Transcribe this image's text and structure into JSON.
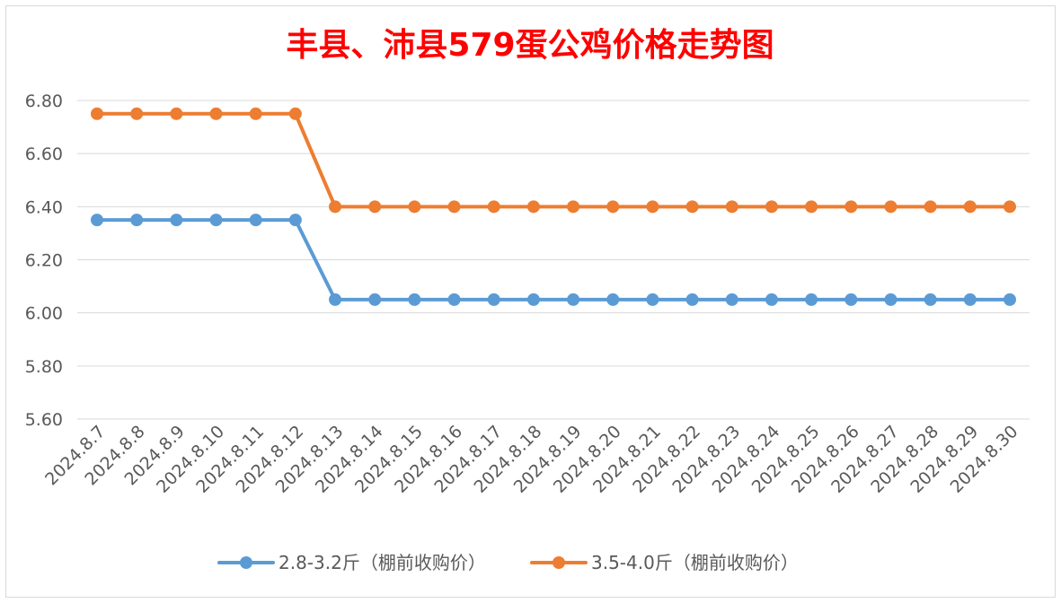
{
  "chart_data": {
    "type": "line",
    "title": "丰县、沛县579蛋公鸡价格走势图",
    "xlabel": "",
    "ylabel": "",
    "ylim": [
      5.6,
      6.8
    ],
    "yticks": [
      "6.80",
      "6.60",
      "6.40",
      "6.20",
      "6.00",
      "5.80",
      "5.60"
    ],
    "grid": true,
    "legend_position": "bottom",
    "categories": [
      "2024.8.7",
      "2024.8.8",
      "2024.8.9",
      "2024.8.10",
      "2024.8.11",
      "2024.8.12",
      "2024.8.13",
      "2024.8.14",
      "2024.8.15",
      "2024.8.16",
      "2024.8.17",
      "2024.8.18",
      "2024.8.19",
      "2024.8.20",
      "2024.8.21",
      "2024.8.22",
      "2024.8.23",
      "2024.8.24",
      "2024.8.25",
      "2024.8.26",
      "2024.8.27",
      "2024.8.28",
      "2024.8.29",
      "2024.8.30"
    ],
    "series": [
      {
        "name": "2.8-3.2斤（棚前收购价）",
        "color": "#5b9bd5",
        "values": [
          6.35,
          6.35,
          6.35,
          6.35,
          6.35,
          6.35,
          6.05,
          6.05,
          6.05,
          6.05,
          6.05,
          6.05,
          6.05,
          6.05,
          6.05,
          6.05,
          6.05,
          6.05,
          6.05,
          6.05,
          6.05,
          6.05,
          6.05,
          6.05
        ]
      },
      {
        "name": "3.5-4.0斤（棚前收购价）",
        "color": "#ed7d31",
        "values": [
          6.75,
          6.75,
          6.75,
          6.75,
          6.75,
          6.75,
          6.4,
          6.4,
          6.4,
          6.4,
          6.4,
          6.4,
          6.4,
          6.4,
          6.4,
          6.4,
          6.4,
          6.4,
          6.4,
          6.4,
          6.4,
          6.4,
          6.4,
          6.4
        ]
      }
    ],
    "title_color": "#ff0000",
    "axis_text_color": "#595959",
    "gridline_color": "#d9d9d9"
  }
}
